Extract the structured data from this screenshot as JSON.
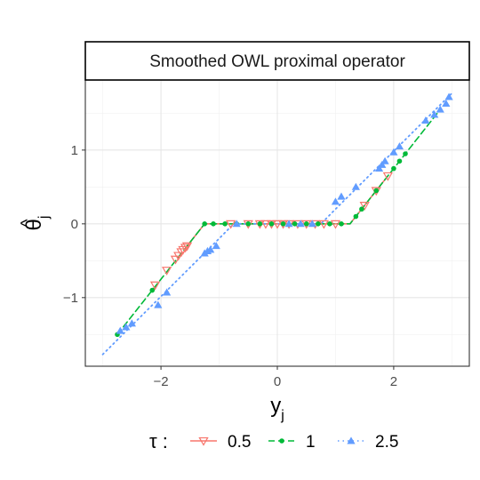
{
  "chart_data": {
    "type": "scatter",
    "title": "Smoothed OWL proximal operator",
    "xlabel": "y",
    "xlabel_sub": "j",
    "ylabel": "θ",
    "ylabel_hat": "^",
    "ylabel_sub": "j",
    "xlim": [
      -3.3,
      3.3
    ],
    "ylim": [
      -1.93,
      1.95
    ],
    "xticks": [
      -2,
      0,
      2
    ],
    "xtick_labels": [
      "−2",
      "0",
      "2"
    ],
    "yticks": [
      -1,
      0,
      1
    ],
    "ytick_labels": [
      "−1",
      "0",
      "1"
    ],
    "grid": true,
    "legend": {
      "title": "τ :",
      "position": "bottom"
    },
    "series": [
      {
        "name": "0.5",
        "color": "#F8766D",
        "line": "solid",
        "marker": "triangle-down-open",
        "line_x": [
          -1.55,
          -1.25,
          1.25,
          1.85
        ],
        "line_y": [
          -0.3,
          0.0,
          0.0,
          0.6
        ],
        "x": [
          -2.1,
          -1.9,
          -1.75,
          -1.7,
          -1.65,
          -1.62,
          -1.58,
          -1.55,
          -0.8,
          -0.5,
          -0.3,
          -0.2,
          -0.1,
          0.0,
          0.1,
          0.2,
          0.35,
          0.5,
          0.65,
          0.8,
          1.0,
          1.5,
          1.7,
          1.9
        ],
        "y": [
          -0.83,
          -0.63,
          -0.48,
          -0.43,
          -0.38,
          -0.35,
          -0.32,
          -0.3,
          0.0,
          0.0,
          0.0,
          0.0,
          0.0,
          0.0,
          0.0,
          0.0,
          0.0,
          0.0,
          0.0,
          0.0,
          0.0,
          0.25,
          0.45,
          0.65
        ]
      },
      {
        "name": "1",
        "color": "#00BA38",
        "line": "dashed",
        "line_x": [
          -2.75,
          -1.25,
          1.25,
          2.8
        ],
        "line_y": [
          -1.5,
          0.0,
          0.0,
          1.55
        ],
        "marker": "circle",
        "x": [
          -2.75,
          -2.15,
          -1.25,
          -1.1,
          -0.9,
          -0.7,
          -0.5,
          -0.3,
          -0.1,
          0.1,
          0.3,
          0.5,
          0.7,
          0.9,
          1.1,
          1.35,
          1.45,
          1.7,
          2.0,
          2.1,
          2.2
        ],
        "y": [
          -1.5,
          -0.9,
          0.0,
          0.0,
          0.0,
          0.0,
          0.0,
          0.0,
          0.0,
          0.0,
          0.0,
          0.0,
          0.0,
          0.0,
          0.0,
          0.1,
          0.2,
          0.45,
          0.75,
          0.85,
          0.95
        ]
      },
      {
        "name": "2.5",
        "color": "#619CFF",
        "line": "dotted",
        "line_x": [
          -3.0,
          -1.0,
          -0.75,
          0.75,
          1.0,
          3.0
        ],
        "line_y": [
          -1.77,
          -0.2,
          0.0,
          0.0,
          0.2,
          1.77
        ],
        "marker": "triangle-up",
        "x": [
          -2.7,
          -2.6,
          -2.5,
          -2.05,
          -1.9,
          -1.25,
          -1.2,
          -1.15,
          -1.05,
          -0.7,
          0.2,
          0.4,
          0.6,
          1.0,
          1.1,
          1.35,
          1.75,
          1.8,
          1.85,
          2.0,
          2.1,
          2.55,
          2.7,
          2.8,
          2.9,
          2.95
        ],
        "y": [
          -1.45,
          -1.4,
          -1.35,
          -1.1,
          -0.93,
          -0.4,
          -0.37,
          -0.35,
          -0.3,
          0.0,
          0.0,
          0.0,
          0.0,
          0.3,
          0.37,
          0.5,
          0.75,
          0.8,
          0.85,
          0.97,
          1.05,
          1.4,
          1.48,
          1.55,
          1.63,
          1.72
        ]
      }
    ]
  }
}
